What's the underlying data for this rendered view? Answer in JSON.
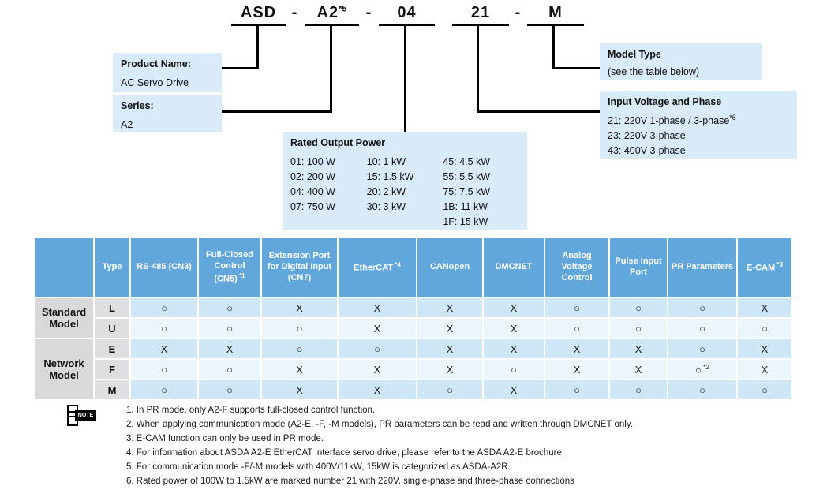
{
  "model_number": {
    "separator": "-",
    "segments": [
      {
        "text": "ASD",
        "sup": ""
      },
      {
        "text": "A2",
        "sup": "*5"
      },
      {
        "text": "04",
        "sup": ""
      },
      {
        "text": "21",
        "sup": ""
      },
      {
        "text": "M",
        "sup": ""
      }
    ]
  },
  "callouts": {
    "product_name": {
      "title": "Product Name:",
      "value": "AC Servo Drive"
    },
    "series": {
      "title": "Series:",
      "value": "A2"
    },
    "rated_output_power": {
      "title": "Rated Output Power",
      "columns": [
        [
          "01: 100 W",
          "02: 200 W",
          "04: 400 W",
          "07: 750 W"
        ],
        [
          "10: 1 kW",
          "15: 1.5 kW",
          "20: 2 kW",
          "30: 3 kW"
        ],
        [
          "45: 4.5 kW",
          "55: 5.5 kW",
          "75: 7.5 kW",
          "1B: 11 kW",
          "1F: 15 kW"
        ]
      ]
    },
    "model_type": {
      "title": "Model Type",
      "value": "(see the table below)"
    },
    "input_voltage": {
      "title": "Input Voltage and Phase",
      "items": [
        {
          "text": "21: 220V 1-phase / 3-phase",
          "sup": "*6"
        },
        {
          "text": "23: 220V 3-phase",
          "sup": ""
        },
        {
          "text": "43: 400V 3-phase",
          "sup": ""
        }
      ]
    }
  },
  "table": {
    "headers": [
      {
        "text": "",
        "sup": ""
      },
      {
        "text": "Type",
        "sup": ""
      },
      {
        "text": "RS-485 (CN3)",
        "sup": ""
      },
      {
        "text": "Full-Closed Control (CN5)",
        "sup": "*1"
      },
      {
        "text": "Extension Port for Digital Input (CN7)",
        "sup": ""
      },
      {
        "text": "EtherCAT",
        "sup": "*4"
      },
      {
        "text": "CANopen",
        "sup": ""
      },
      {
        "text": "DMCNET",
        "sup": ""
      },
      {
        "text": "Analog Voltage Control",
        "sup": ""
      },
      {
        "text": "Pulse Input Port",
        "sup": ""
      },
      {
        "text": "PR Parameters",
        "sup": ""
      },
      {
        "text": "E-CAM",
        "sup": "*3"
      }
    ],
    "symbols": {
      "yes": "○",
      "no": "X"
    },
    "row_groups": [
      {
        "label": "Standard Model",
        "rows": [
          {
            "type": "L",
            "values": [
              "O",
              "O",
              "X",
              "X",
              "X",
              "X",
              "O",
              "O",
              "O",
              "X"
            ]
          },
          {
            "type": "U",
            "values": [
              "O",
              "O",
              "O",
              "X",
              "X",
              "X",
              "O",
              "O",
              "O",
              "O"
            ]
          }
        ]
      },
      {
        "label": "Network Model",
        "rows": [
          {
            "type": "E",
            "values": [
              "X",
              "X",
              "O",
              "O",
              "X",
              "X",
              "X",
              "X",
              "O",
              "X"
            ]
          },
          {
            "type": "F",
            "values": [
              "O",
              "O",
              "X",
              "X",
              "X",
              "O",
              "X",
              "X",
              "O*2",
              "X"
            ]
          },
          {
            "type": "M",
            "values": [
              "O",
              "O",
              "X",
              "X",
              "O",
              "X",
              "O",
              "O",
              "O",
              "O"
            ]
          }
        ]
      }
    ]
  },
  "notes": {
    "icon_label": "NOTE",
    "items": [
      "In PR mode, only A2-F supports full-closed control function.",
      "When applying communication mode (A2-E, -F, -M models), PR parameters can be read and written through DMCNET only.",
      "E-CAM function can only be used in PR mode.",
      "For information about ASDA A2-E EtherCAT interface servo drive, please refer to the ASDA A2-E brochure.",
      "For communication mode -F/-M models with 400V/11kW, 15kW is categorized as ASDA-A2R.",
      "Rated power of 100W to 1.5kW are marked number 21 with 220V, single-phase and three-phase connections"
    ]
  },
  "colors": {
    "header_blue": "#61a7db",
    "row_blue_dark": "#cde7f6",
    "row_blue_light": "#eaf5fc",
    "gray_cell": "#d9d9d9",
    "callout_blue": "#d9ebf8",
    "line_black": "#000000"
  }
}
